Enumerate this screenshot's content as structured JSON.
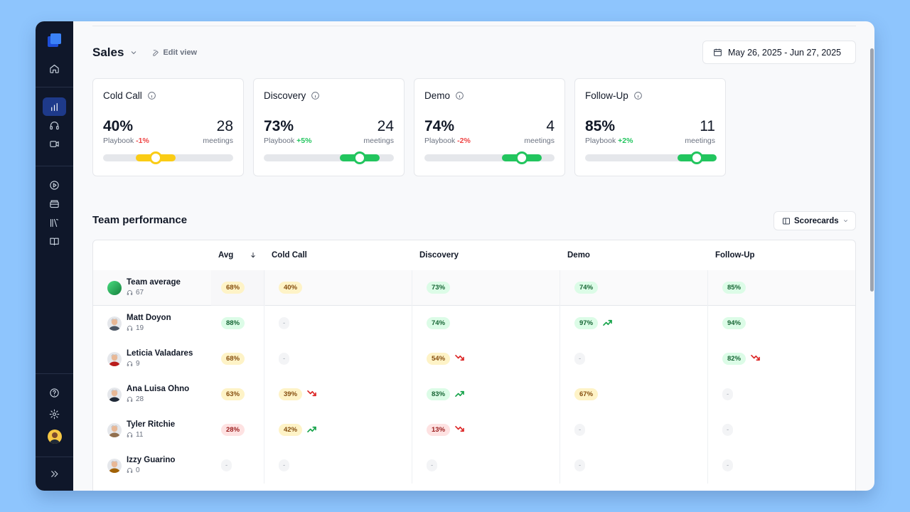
{
  "header": {
    "title": "Sales",
    "edit_view": "Edit view",
    "date_range": "May 26, 2025 - Jun 27, 2025"
  },
  "cards": [
    {
      "title": "Cold Call",
      "pct": "40%",
      "playbook_label": "Playbook",
      "delta": "-1%",
      "delta_dir": "neg",
      "count": "28",
      "count_label": "meetings",
      "range_start": 0.25,
      "range_end": 0.55,
      "value": 0.4,
      "color": "#facc15"
    },
    {
      "title": "Discovery",
      "pct": "73%",
      "playbook_label": "Playbook",
      "delta": "+5%",
      "delta_dir": "pos",
      "count": "24",
      "count_label": "meetings",
      "range_start": 0.58,
      "range_end": 0.88,
      "value": 0.73,
      "color": "#22c55e"
    },
    {
      "title": "Demo",
      "pct": "74%",
      "playbook_label": "Playbook",
      "delta": "-2%",
      "delta_dir": "neg",
      "count": "4",
      "count_label": "meetings",
      "range_start": 0.59,
      "range_end": 0.89,
      "value": 0.74,
      "color": "#22c55e"
    },
    {
      "title": "Follow-Up",
      "pct": "85%",
      "playbook_label": "Playbook",
      "delta": "+2%",
      "delta_dir": "pos",
      "count": "11",
      "count_label": "meetings",
      "range_start": 0.7,
      "range_end": 1.0,
      "value": 0.85,
      "color": "#22c55e"
    }
  ],
  "team_performance": {
    "title": "Team performance",
    "scorecards_label": "Scorecards",
    "columns": [
      "Avg",
      "Cold Call",
      "Discovery",
      "Demo",
      "Follow-Up"
    ],
    "rows": [
      {
        "name": "Team average",
        "meetings": "67",
        "avatar": "gradient",
        "cells": [
          {
            "v": "68%",
            "c": "amber"
          },
          {
            "v": "40%",
            "c": "amber"
          },
          {
            "v": "73%",
            "c": "green"
          },
          {
            "v": "74%",
            "c": "green"
          },
          {
            "v": "85%",
            "c": "green"
          }
        ]
      },
      {
        "name": "Matt Doyon",
        "meetings": "19",
        "avatar": "#4b5563",
        "cells": [
          {
            "v": "88%",
            "c": "green"
          },
          {
            "v": "-",
            "c": "none"
          },
          {
            "v": "74%",
            "c": "green"
          },
          {
            "v": "97%",
            "c": "green",
            "t": "up"
          },
          {
            "v": "94%",
            "c": "green"
          }
        ]
      },
      {
        "name": "Leticia Valadares",
        "meetings": "9",
        "avatar": "#b91c1c",
        "cells": [
          {
            "v": "68%",
            "c": "amber"
          },
          {
            "v": "-",
            "c": "none"
          },
          {
            "v": "54%",
            "c": "amber",
            "t": "down"
          },
          {
            "v": "-",
            "c": "none"
          },
          {
            "v": "82%",
            "c": "green",
            "t": "down"
          }
        ]
      },
      {
        "name": "Ana Luisa Ohno",
        "meetings": "28",
        "avatar": "#1f2937",
        "cells": [
          {
            "v": "63%",
            "c": "amber"
          },
          {
            "v": "39%",
            "c": "amber",
            "t": "down"
          },
          {
            "v": "83%",
            "c": "green",
            "t": "up"
          },
          {
            "v": "67%",
            "c": "amber"
          },
          {
            "v": "-",
            "c": "none"
          }
        ]
      },
      {
        "name": "Tyler Ritchie",
        "meetings": "11",
        "avatar": "#92704f",
        "cells": [
          {
            "v": "28%",
            "c": "red"
          },
          {
            "v": "42%",
            "c": "amber",
            "t": "up"
          },
          {
            "v": "13%",
            "c": "red",
            "t": "down"
          },
          {
            "v": "-",
            "c": "none"
          },
          {
            "v": "-",
            "c": "none"
          }
        ]
      },
      {
        "name": "Izzy Guarino",
        "meetings": "0",
        "avatar": "#a16207",
        "cells": [
          {
            "v": "-",
            "c": "none"
          },
          {
            "v": "-",
            "c": "none"
          },
          {
            "v": "-",
            "c": "none"
          },
          {
            "v": "-",
            "c": "none"
          },
          {
            "v": "-",
            "c": "none"
          }
        ]
      }
    ]
  },
  "sidebar": {
    "icons": [
      "logo-icon",
      "home-icon",
      "analytics-icon",
      "headset-icon",
      "video-icon",
      "play-icon",
      "inbox-icon",
      "library-icon",
      "book-icon",
      "help-icon",
      "settings-icon",
      "expand-icon"
    ]
  }
}
